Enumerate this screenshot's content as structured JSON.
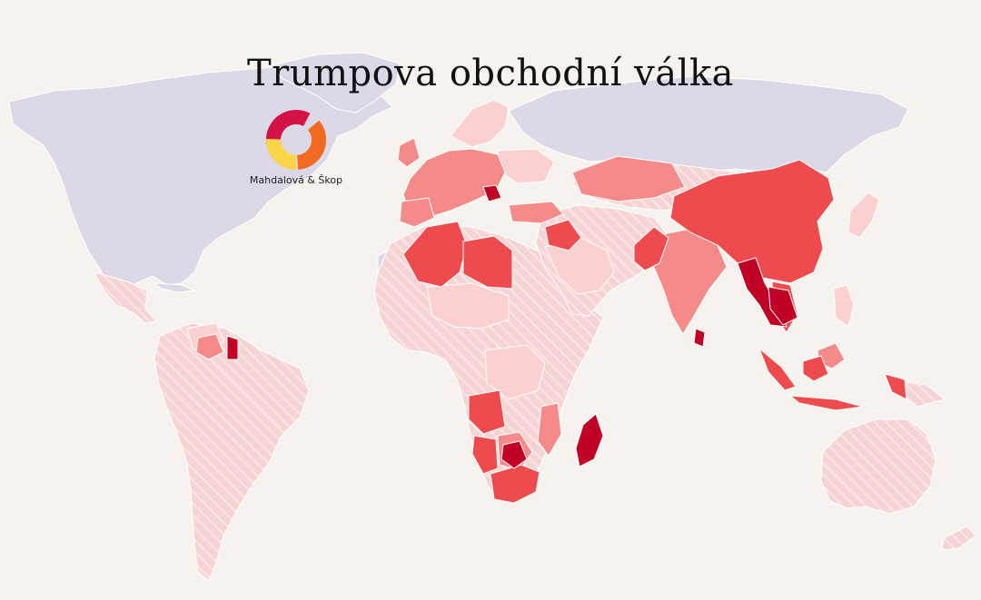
{
  "title": "Trumpova obchodní válka",
  "brand": {
    "name": "Mahdalová & Škop",
    "logo_colors": [
      "#d31245",
      "#f26a21",
      "#fbd44a"
    ]
  },
  "colors": {
    "ocean": "#f6f3ef",
    "no_data": "#dcd8e6",
    "hatched": "#f5d3d3",
    "tier_light": "#fbd0d0",
    "tier_medium": "#f58a8a",
    "tier_high": "#ee4b4f",
    "tier_very_high": "#c00024"
  }
}
